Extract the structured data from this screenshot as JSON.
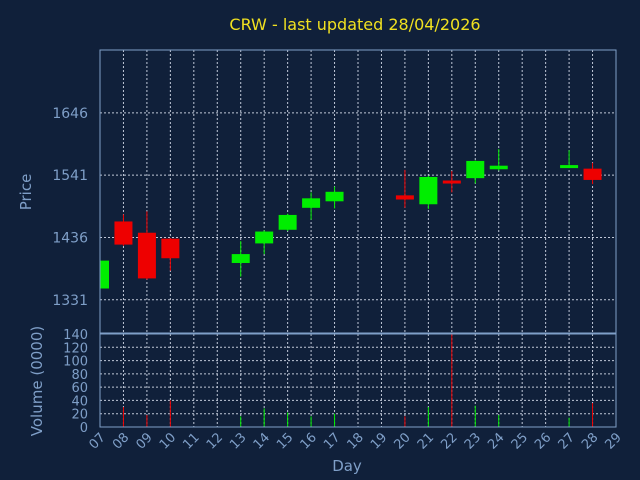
{
  "chart_data": {
    "type": "candlestick",
    "title": "CRW - last updated 28/04/2026",
    "xlabel": "Day",
    "ylabel_price": "Price",
    "ylabel_volume": "Volume (0000)",
    "x_ticks": [
      "07",
      "08",
      "09",
      "10",
      "11",
      "12",
      "13",
      "14",
      "15",
      "16",
      "17",
      "18",
      "19",
      "20",
      "21",
      "22",
      "23",
      "24",
      "25",
      "26",
      "27",
      "28",
      "29"
    ],
    "price_ticks": [
      1331,
      1436,
      1541,
      1646
    ],
    "price_ylim": [
      1275,
      1752
    ],
    "volume_ticks": [
      0,
      20,
      40,
      60,
      80,
      100,
      120,
      140
    ],
    "volume_ylim": [
      0,
      140
    ],
    "colors": {
      "up": "#00ee00",
      "down": "#ee0000",
      "title": "#f0e020",
      "axis": "#7f9fc8",
      "grid": "#c0c8d8"
    },
    "candles": [
      {
        "day": "07",
        "open": 1350,
        "close": 1397,
        "high": 1400,
        "low": 1348,
        "volume": 0
      },
      {
        "day": "08",
        "open": 1463,
        "close": 1424,
        "high": 1475,
        "low": 1422,
        "volume": 30
      },
      {
        "day": "09",
        "open": 1444,
        "close": 1367,
        "high": 1480,
        "low": 1365,
        "volume": 18
      },
      {
        "day": "10",
        "open": 1434,
        "close": 1401,
        "high": 1435,
        "low": 1380,
        "volume": 40
      },
      {
        "day": "13",
        "open": 1393,
        "close": 1408,
        "high": 1430,
        "low": 1370,
        "volume": 16
      },
      {
        "day": "14",
        "open": 1426,
        "close": 1446,
        "high": 1448,
        "low": 1408,
        "volume": 28
      },
      {
        "day": "15",
        "open": 1449,
        "close": 1474,
        "high": 1476,
        "low": 1447,
        "volume": 22
      },
      {
        "day": "16",
        "open": 1486,
        "close": 1502,
        "high": 1512,
        "low": 1466,
        "volume": 16
      },
      {
        "day": "17",
        "open": 1497,
        "close": 1513,
        "high": 1522,
        "low": 1485,
        "volume": 20
      },
      {
        "day": "20",
        "open": 1507,
        "close": 1500,
        "high": 1550,
        "low": 1486,
        "volume": 16
      },
      {
        "day": "21",
        "open": 1492,
        "close": 1538,
        "high": 1540,
        "low": 1484,
        "volume": 30
      },
      {
        "day": "22",
        "open": 1532,
        "close": 1527,
        "high": 1548,
        "low": 1512,
        "volume": 140
      },
      {
        "day": "23",
        "open": 1536,
        "close": 1565,
        "high": 1566,
        "low": 1527,
        "volume": 32
      },
      {
        "day": "24",
        "open": 1551,
        "close": 1557,
        "high": 1585,
        "low": 1549,
        "volume": 18
      },
      {
        "day": "27",
        "open": 1555,
        "close": 1558,
        "high": 1583,
        "low": 1553,
        "volume": 14
      },
      {
        "day": "28",
        "open": 1552,
        "close": 1533,
        "high": 1562,
        "low": 1526,
        "volume": 36
      }
    ]
  }
}
